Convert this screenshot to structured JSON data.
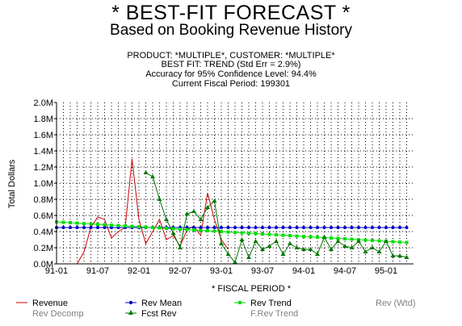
{
  "header": {
    "title": "* BEST-FIT FORECAST *",
    "subtitle": "Based on Booking Revenue History",
    "info_lines": [
      "PRODUCT: *MULTIPLE*, CUSTOMER: *MULTIPLE*",
      "BEST FIT:  TREND (Std Err = 2.9%)",
      "Accuracy for 95% Confidence Level: 94.4%",
      "Current Fiscal Period:  199301"
    ]
  },
  "chart_data": {
    "type": "line",
    "xlabel": "* FISCAL PERIOD *",
    "ylabel": "Total Dollars",
    "x_tick_labels": [
      "91-01",
      "91-07",
      "92-01",
      "92-07",
      "93-01",
      "93-07",
      "94-01",
      "94-07",
      "95-01"
    ],
    "y_tick_labels": [
      "0.0M",
      "0.2M",
      "0.4M",
      "0.6M",
      "0.8M",
      "1.0M",
      "1.2M",
      "1.4M",
      "1.6M",
      "1.8M",
      "2.0M"
    ],
    "ylim": [
      0,
      2.0
    ],
    "x_range_periods": [
      0,
      52
    ],
    "grid": true,
    "series": [
      {
        "name": "Revenue",
        "color": "#cc0000",
        "marker": "none",
        "points": [
          [
            3,
            0.0
          ],
          [
            4,
            0.15
          ],
          [
            5,
            0.45
          ],
          [
            6,
            0.58
          ],
          [
            7,
            0.55
          ],
          [
            8,
            0.32
          ],
          [
            9,
            0.4
          ],
          [
            10,
            0.45
          ],
          [
            11,
            1.3
          ],
          [
            12,
            0.55
          ],
          [
            13,
            0.25
          ],
          [
            14,
            0.4
          ],
          [
            15,
            0.55
          ],
          [
            16,
            0.3
          ],
          [
            17,
            0.35
          ],
          [
            18,
            0.22
          ],
          [
            19,
            0.42
          ],
          [
            20,
            0.47
          ],
          [
            21,
            0.35
          ],
          [
            22,
            0.88
          ],
          [
            23,
            0.55
          ],
          [
            24,
            0.3
          ],
          [
            25,
            0.18
          ]
        ]
      },
      {
        "name": "Rev Mean",
        "color": "#0000cc",
        "marker": "circle",
        "points": [
          [
            0,
            0.45
          ],
          [
            1,
            0.45
          ],
          [
            2,
            0.45
          ],
          [
            3,
            0.45
          ],
          [
            4,
            0.45
          ],
          [
            5,
            0.45
          ],
          [
            6,
            0.45
          ],
          [
            7,
            0.45
          ],
          [
            8,
            0.45
          ],
          [
            9,
            0.45
          ],
          [
            10,
            0.45
          ],
          [
            11,
            0.45
          ],
          [
            12,
            0.45
          ],
          [
            13,
            0.45
          ],
          [
            14,
            0.45
          ],
          [
            15,
            0.45
          ],
          [
            16,
            0.45
          ],
          [
            17,
            0.45
          ],
          [
            18,
            0.45
          ],
          [
            19,
            0.45
          ],
          [
            20,
            0.45
          ],
          [
            21,
            0.45
          ],
          [
            22,
            0.45
          ],
          [
            23,
            0.45
          ],
          [
            24,
            0.45
          ],
          [
            25,
            0.45
          ],
          [
            26,
            0.45
          ],
          [
            27,
            0.45
          ],
          [
            28,
            0.45
          ],
          [
            29,
            0.45
          ],
          [
            30,
            0.45
          ],
          [
            31,
            0.45
          ],
          [
            32,
            0.45
          ],
          [
            33,
            0.45
          ],
          [
            34,
            0.45
          ],
          [
            35,
            0.45
          ],
          [
            36,
            0.45
          ],
          [
            37,
            0.45
          ],
          [
            38,
            0.45
          ],
          [
            39,
            0.45
          ],
          [
            40,
            0.45
          ],
          [
            41,
            0.45
          ],
          [
            42,
            0.45
          ],
          [
            43,
            0.45
          ],
          [
            44,
            0.45
          ],
          [
            45,
            0.45
          ],
          [
            46,
            0.45
          ],
          [
            47,
            0.45
          ],
          [
            48,
            0.45
          ],
          [
            49,
            0.45
          ],
          [
            50,
            0.45
          ],
          [
            51,
            0.45
          ]
        ]
      },
      {
        "name": "Rev Trend",
        "color": "#00dd00",
        "marker": "square",
        "points": [
          [
            0,
            0.52
          ],
          [
            1,
            0.515
          ],
          [
            2,
            0.51
          ],
          [
            3,
            0.505
          ],
          [
            4,
            0.5
          ],
          [
            5,
            0.495
          ],
          [
            6,
            0.49
          ],
          [
            7,
            0.485
          ],
          [
            8,
            0.48
          ],
          [
            9,
            0.475
          ],
          [
            10,
            0.47
          ],
          [
            11,
            0.465
          ],
          [
            12,
            0.46
          ],
          [
            13,
            0.455
          ],
          [
            14,
            0.45
          ],
          [
            15,
            0.445
          ],
          [
            16,
            0.44
          ],
          [
            17,
            0.435
          ],
          [
            18,
            0.43
          ],
          [
            19,
            0.425
          ],
          [
            20,
            0.42
          ],
          [
            21,
            0.415
          ],
          [
            22,
            0.41
          ],
          [
            23,
            0.405
          ],
          [
            24,
            0.4
          ],
          [
            25,
            0.395
          ],
          [
            26,
            0.39
          ],
          [
            27,
            0.385
          ],
          [
            28,
            0.38
          ],
          [
            29,
            0.375
          ],
          [
            30,
            0.37
          ],
          [
            31,
            0.365
          ],
          [
            32,
            0.36
          ],
          [
            33,
            0.355
          ],
          [
            34,
            0.35
          ],
          [
            35,
            0.345
          ],
          [
            36,
            0.34
          ],
          [
            37,
            0.335
          ],
          [
            38,
            0.33
          ],
          [
            39,
            0.325
          ],
          [
            40,
            0.32
          ],
          [
            41,
            0.315
          ],
          [
            42,
            0.31
          ],
          [
            43,
            0.305
          ],
          [
            44,
            0.3
          ],
          [
            45,
            0.295
          ],
          [
            46,
            0.29
          ],
          [
            47,
            0.285
          ],
          [
            48,
            0.28
          ],
          [
            49,
            0.275
          ],
          [
            50,
            0.27
          ],
          [
            51,
            0.265
          ]
        ]
      },
      {
        "name": "Fcst Rev",
        "color": "#007700",
        "marker": "triangle",
        "points": [
          [
            13,
            1.13
          ],
          [
            14,
            1.08
          ],
          [
            15,
            0.8
          ],
          [
            16,
            0.55
          ],
          [
            17,
            0.38
          ],
          [
            18,
            0.2
          ],
          [
            19,
            0.62
          ],
          [
            20,
            0.65
          ],
          [
            21,
            0.55
          ],
          [
            22,
            0.7
          ],
          [
            23,
            0.78
          ],
          [
            24,
            0.25
          ],
          [
            25,
            0.12
          ],
          [
            26,
            0.02
          ],
          [
            27,
            0.3
          ],
          [
            28,
            0.08
          ],
          [
            29,
            0.28
          ],
          [
            30,
            0.18
          ],
          [
            31,
            0.22
          ],
          [
            32,
            0.28
          ],
          [
            33,
            0.12
          ],
          [
            34,
            0.25
          ],
          [
            35,
            0.2
          ],
          [
            36,
            0.18
          ],
          [
            37,
            0.18
          ],
          [
            38,
            0.12
          ],
          [
            39,
            0.33
          ],
          [
            40,
            0.18
          ],
          [
            41,
            0.28
          ],
          [
            42,
            0.22
          ],
          [
            43,
            0.2
          ],
          [
            44,
            0.28
          ],
          [
            45,
            0.15
          ],
          [
            46,
            0.2
          ],
          [
            47,
            0.15
          ],
          [
            48,
            0.28
          ],
          [
            49,
            0.1
          ],
          [
            50,
            0.1
          ],
          [
            51,
            0.08
          ]
        ]
      }
    ],
    "legend": {
      "placement": "bottom",
      "entries": [
        {
          "label": "Revenue",
          "color": "#cc0000",
          "marker": "line",
          "text_color": "#000000"
        },
        {
          "label": "Rev Mean",
          "color": "#0000cc",
          "marker": "circle",
          "text_color": "#000000"
        },
        {
          "label": "Rev Trend",
          "color": "#00dd00",
          "marker": "square",
          "text_color": "#000000"
        },
        {
          "label": "Rev (Wtd)",
          "color": "#808080",
          "marker": "none",
          "text_color": "#808080"
        },
        {
          "label": "Rev Decomp",
          "color": "#808080",
          "marker": "none",
          "text_color": "#808080"
        },
        {
          "label": "Fcst Rev",
          "color": "#007700",
          "marker": "triangle",
          "text_color": "#000000"
        },
        {
          "label": "F.Rev Trend",
          "color": "#808080",
          "marker": "none",
          "text_color": "#808080"
        }
      ]
    }
  }
}
